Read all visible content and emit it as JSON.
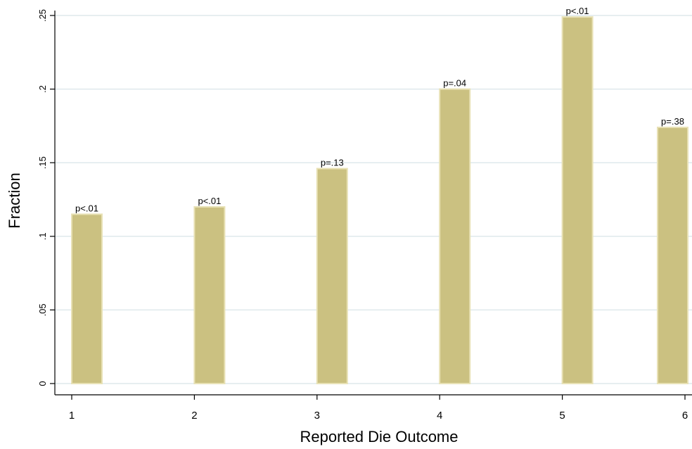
{
  "chart_data": {
    "type": "bar",
    "title": "",
    "xlabel": "Reported Die Outcome",
    "ylabel": "Fraction",
    "categories": [
      "1",
      "2",
      "3",
      "4",
      "5",
      "6"
    ],
    "x": [
      1,
      2,
      3,
      4,
      5,
      6
    ],
    "values": [
      0.115,
      0.12,
      0.146,
      0.2,
      0.249,
      0.174
    ],
    "bar_labels": [
      "p<.01",
      "p<.01",
      "p=.13",
      "p=.04",
      "p<.01",
      "p=.38"
    ],
    "xlim": [
      1,
      6
    ],
    "ylim": [
      0,
      0.25
    ],
    "yticks": [
      0,
      0.05,
      0.1,
      0.15,
      0.2,
      0.25
    ],
    "ytick_labels": [
      "0",
      ".05",
      ".1",
      ".15",
      ".2",
      ".25"
    ],
    "xticks": [
      1,
      2,
      3,
      4,
      5,
      6
    ],
    "xtick_labels": [
      "1",
      "2",
      "3",
      "4",
      "5",
      "6"
    ],
    "grid": true,
    "colors": {
      "bar_fill": "#cbc181",
      "bar_stroke": "#e8e1b5",
      "grid": "#dfe9ec"
    }
  }
}
